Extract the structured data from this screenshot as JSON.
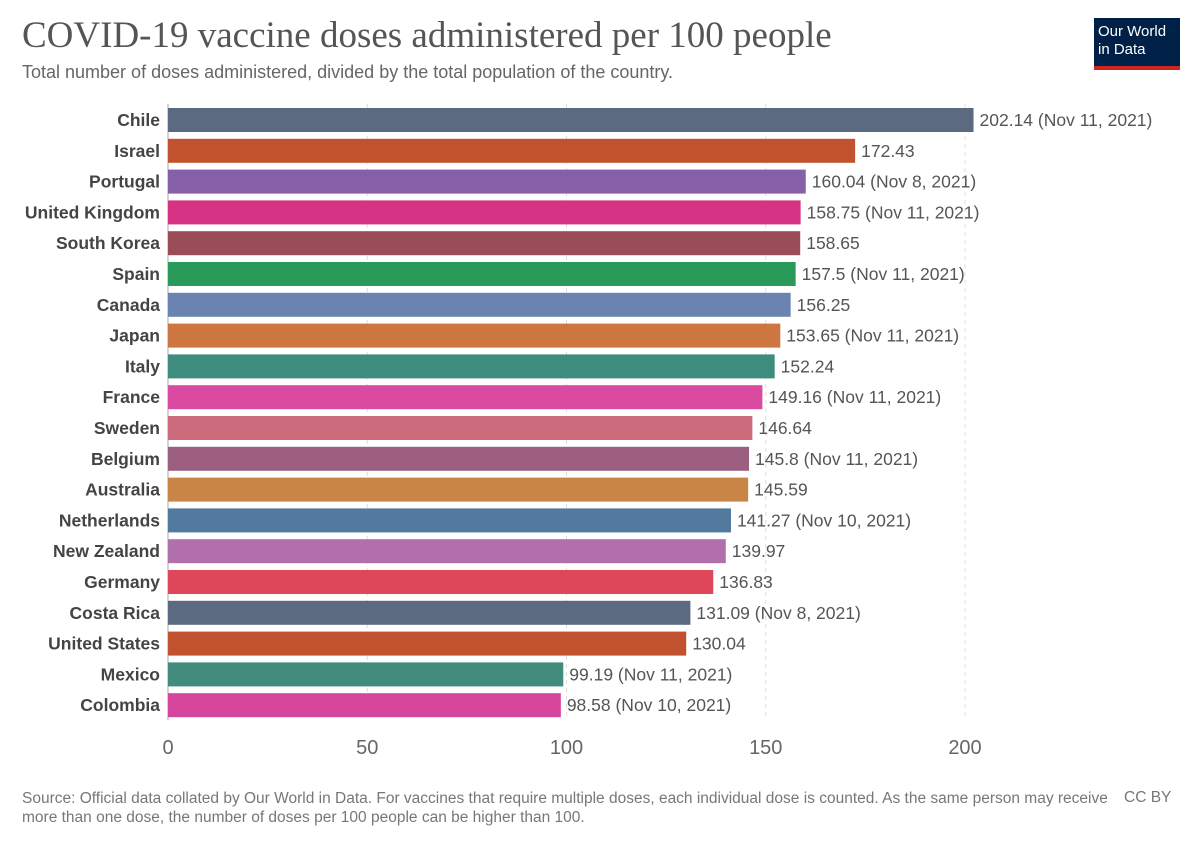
{
  "header": {
    "title": "COVID-19 vaccine doses administered per 100 people",
    "subtitle": "Total number of doses administered, divided by the total population of the country."
  },
  "logo": {
    "line1": "Our World",
    "line2": "in Data"
  },
  "footer": {
    "source": "Source: Official data collated by Our World in Data. For vaccines that require multiple doses, each individual dose is counted. As the same person may receive more than one dose, the number of doses per 100 people can be higher than 100.",
    "license": "CC BY"
  },
  "chart_data": {
    "type": "bar",
    "orientation": "horizontal",
    "title": "COVID-19 vaccine doses administered per 100 people",
    "xlim": [
      0,
      200
    ],
    "x_ticks": [
      0,
      50,
      100,
      150,
      200
    ],
    "grid": "vertical dashed",
    "bars": [
      {
        "category": "Chile",
        "value": 202.14,
        "label": "202.14 (Nov 11, 2021)",
        "color": "#5b6a80"
      },
      {
        "category": "Israel",
        "value": 172.43,
        "label": "172.43",
        "color": "#c0532d"
      },
      {
        "category": "Portugal",
        "value": 160.04,
        "label": "160.04 (Nov 8, 2021)",
        "color": "#8560a8"
      },
      {
        "category": "United Kingdom",
        "value": 158.75,
        "label": "158.75 (Nov 11, 2021)",
        "color": "#d63384"
      },
      {
        "category": "South Korea",
        "value": 158.65,
        "label": "158.65",
        "color": "#9a4d57"
      },
      {
        "category": "Spain",
        "value": 157.5,
        "label": "157.5 (Nov 11, 2021)",
        "color": "#2a9a5b"
      },
      {
        "category": "Canada",
        "value": 156.25,
        "label": "156.25",
        "color": "#6b83b0"
      },
      {
        "category": "Japan",
        "value": 153.65,
        "label": "153.65 (Nov 11, 2021)",
        "color": "#cf7640"
      },
      {
        "category": "Italy",
        "value": 152.24,
        "label": "152.24",
        "color": "#3d8c7d"
      },
      {
        "category": "France",
        "value": 149.16,
        "label": "149.16 (Nov 11, 2021)",
        "color": "#d94aa0"
      },
      {
        "category": "Sweden",
        "value": 146.64,
        "label": "146.64",
        "color": "#cc6b7c"
      },
      {
        "category": "Belgium",
        "value": 145.8,
        "label": "145.8 (Nov 11, 2021)",
        "color": "#9c5f80"
      },
      {
        "category": "Australia",
        "value": 145.59,
        "label": "145.59",
        "color": "#c98545"
      },
      {
        "category": "Netherlands",
        "value": 141.27,
        "label": "141.27 (Nov 10, 2021)",
        "color": "#517a9e"
      },
      {
        "category": "New Zealand",
        "value": 139.97,
        "label": "139.97",
        "color": "#b170ab"
      },
      {
        "category": "Germany",
        "value": 136.83,
        "label": "136.83",
        "color": "#de4659"
      },
      {
        "category": "Costa Rica",
        "value": 131.09,
        "label": "131.09 (Nov 8, 2021)",
        "color": "#5b6a80"
      },
      {
        "category": "United States",
        "value": 130.04,
        "label": "130.04",
        "color": "#c0532d"
      },
      {
        "category": "Mexico",
        "value": 99.19,
        "label": "99.19 (Nov 11, 2021)",
        "color": "#418c7c"
      },
      {
        "category": "Colombia",
        "value": 98.58,
        "label": "98.58 (Nov 10, 2021)",
        "color": "#d6449b"
      }
    ]
  }
}
